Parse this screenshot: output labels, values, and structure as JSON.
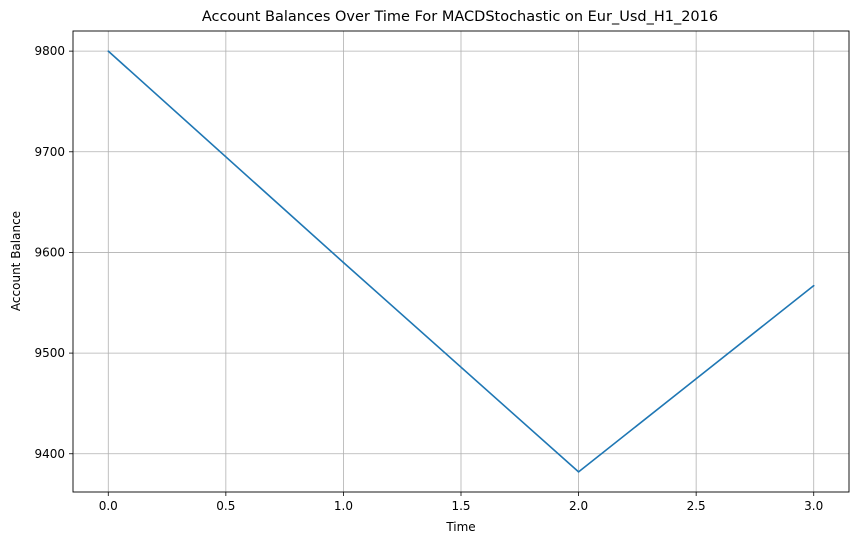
{
  "chart_data": {
    "type": "line",
    "title": "Account Balances Over Time For MACDStochastic on Eur_Usd_H1_2016",
    "xlabel": "Time",
    "ylabel": "Account Balance",
    "xlim": [
      -0.15,
      3.15
    ],
    "ylim": [
      9362,
      9820
    ],
    "x_ticks": [
      0.0,
      0.5,
      1.0,
      1.5,
      2.0,
      2.5,
      3.0
    ],
    "x_tick_labels": [
      "0.0",
      "0.5",
      "1.0",
      "1.5",
      "2.0",
      "2.5",
      "3.0"
    ],
    "y_ticks": [
      9400,
      9500,
      9600,
      9700,
      9800
    ],
    "y_tick_labels": [
      "9400",
      "9500",
      "9600",
      "9700",
      "9800"
    ],
    "grid": true,
    "series": [
      {
        "x": [
          0,
          1,
          2,
          3
        ],
        "values": [
          9800,
          9590,
          9382,
          9567
        ],
        "color": "#1f77b4"
      }
    ]
  }
}
